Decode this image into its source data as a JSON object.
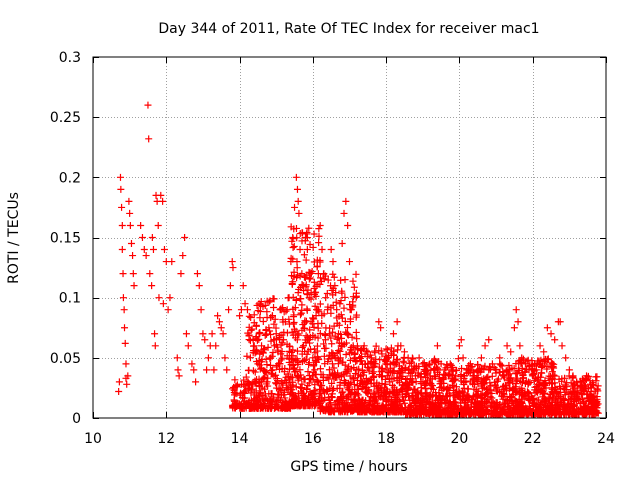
{
  "chart_data": {
    "type": "scatter",
    "title": "Day 344 of 2011, Rate Of TEC Index for receiver mac1",
    "xlabel": "GPS time / hours",
    "ylabel": "ROTI / TECUs",
    "xlim": [
      10,
      24
    ],
    "ylim": [
      0,
      0.3
    ],
    "xticks": [
      10,
      12,
      14,
      16,
      18,
      20,
      22,
      24
    ],
    "yticks": [
      0,
      0.05,
      0.1,
      0.15,
      0.2,
      0.25,
      0.3
    ],
    "ytick_labels": [
      "0",
      "0.05",
      "0.1",
      "0.15",
      "0.2",
      "0.25",
      "0.3"
    ],
    "grid": true,
    "marker": "+",
    "color": "#ff0000",
    "series": [
      {
        "name": "ROTI",
        "points": [
          [
            10.7,
            0.022
          ],
          [
            10.72,
            0.03
          ],
          [
            10.75,
            0.2
          ],
          [
            10.76,
            0.19
          ],
          [
            10.78,
            0.175
          ],
          [
            10.8,
            0.16
          ],
          [
            10.8,
            0.14
          ],
          [
            10.82,
            0.12
          ],
          [
            10.83,
            0.1
          ],
          [
            10.85,
            0.09
          ],
          [
            10.86,
            0.075
          ],
          [
            10.88,
            0.062
          ],
          [
            10.9,
            0.045
          ],
          [
            10.9,
            0.033
          ],
          [
            10.92,
            0.028
          ],
          [
            10.95,
            0.035
          ],
          [
            10.98,
            0.18
          ],
          [
            11.0,
            0.17
          ],
          [
            11.02,
            0.16
          ],
          [
            11.05,
            0.145
          ],
          [
            11.08,
            0.135
          ],
          [
            11.1,
            0.12
          ],
          [
            11.12,
            0.11
          ],
          [
            11.3,
            0.16
          ],
          [
            11.35,
            0.15
          ],
          [
            11.4,
            0.14
          ],
          [
            11.45,
            0.135
          ],
          [
            11.5,
            0.26
          ],
          [
            11.52,
            0.232
          ],
          [
            11.55,
            0.12
          ],
          [
            11.6,
            0.11
          ],
          [
            11.62,
            0.15
          ],
          [
            11.65,
            0.14
          ],
          [
            11.68,
            0.07
          ],
          [
            11.7,
            0.06
          ],
          [
            11.72,
            0.185
          ],
          [
            11.75,
            0.18
          ],
          [
            11.78,
            0.16
          ],
          [
            11.8,
            0.1
          ],
          [
            11.85,
            0.185
          ],
          [
            11.9,
            0.18
          ],
          [
            11.92,
            0.095
          ],
          [
            11.95,
            0.14
          ],
          [
            12.0,
            0.13
          ],
          [
            12.05,
            0.09
          ],
          [
            12.1,
            0.1
          ],
          [
            12.15,
            0.13
          ],
          [
            12.3,
            0.05
          ],
          [
            12.32,
            0.04
          ],
          [
            12.35,
            0.035
          ],
          [
            12.4,
            0.12
          ],
          [
            12.45,
            0.135
          ],
          [
            12.5,
            0.15
          ],
          [
            12.55,
            0.07
          ],
          [
            12.6,
            0.06
          ],
          [
            12.7,
            0.045
          ],
          [
            12.75,
            0.04
          ],
          [
            12.8,
            0.03
          ],
          [
            12.85,
            0.12
          ],
          [
            12.9,
            0.11
          ],
          [
            12.95,
            0.09
          ],
          [
            13.0,
            0.07
          ],
          [
            13.05,
            0.065
          ],
          [
            13.1,
            0.04
          ],
          [
            13.15,
            0.05
          ],
          [
            13.2,
            0.06
          ],
          [
            13.25,
            0.07
          ],
          [
            13.3,
            0.04
          ],
          [
            13.35,
            0.06
          ],
          [
            13.4,
            0.085
          ],
          [
            13.45,
            0.08
          ],
          [
            13.5,
            0.075
          ],
          [
            13.55,
            0.07
          ],
          [
            13.6,
            0.05
          ],
          [
            13.65,
            0.04
          ],
          [
            13.7,
            0.09
          ],
          [
            13.75,
            0.11
          ],
          [
            13.8,
            0.13
          ],
          [
            13.82,
            0.125
          ],
          [
            13.85,
            0.015
          ],
          [
            13.9,
            0.012
          ],
          [
            13.95,
            0.01
          ],
          [
            14.0,
            0.085
          ],
          [
            14.05,
            0.09
          ],
          [
            14.1,
            0.11
          ],
          [
            14.15,
            0.095
          ],
          [
            14.2,
            0.012
          ],
          [
            14.3,
            0.008
          ],
          [
            14.35,
            0.01
          ],
          [
            14.4,
            0.06
          ],
          [
            14.45,
            0.055
          ],
          [
            14.5,
            0.045
          ],
          [
            14.55,
            0.07
          ],
          [
            14.6,
            0.06
          ],
          [
            14.65,
            0.012
          ],
          [
            14.7,
            0.015
          ],
          [
            14.75,
            0.03
          ],
          [
            14.8,
            0.075
          ],
          [
            14.85,
            0.05
          ],
          [
            14.9,
            0.04
          ],
          [
            14.95,
            0.06
          ],
          [
            15.0,
            0.07
          ],
          [
            15.05,
            0.055
          ],
          [
            15.1,
            0.045
          ],
          [
            15.15,
            0.03
          ],
          [
            15.2,
            0.065
          ],
          [
            15.25,
            0.08
          ],
          [
            15.3,
            0.09
          ],
          [
            15.35,
            0.1
          ],
          [
            15.4,
            0.13
          ],
          [
            15.45,
            0.15
          ],
          [
            15.5,
            0.175
          ],
          [
            15.55,
            0.2
          ],
          [
            15.58,
            0.19
          ],
          [
            15.6,
            0.18
          ],
          [
            15.62,
            0.17
          ],
          [
            15.65,
            0.14
          ],
          [
            15.7,
            0.12
          ],
          [
            15.75,
            0.11
          ],
          [
            15.8,
            0.15
          ],
          [
            15.85,
            0.14
          ],
          [
            15.9,
            0.1
          ],
          [
            15.95,
            0.08
          ],
          [
            16.0,
            0.05
          ],
          [
            16.05,
            0.04
          ],
          [
            16.1,
            0.09
          ],
          [
            16.15,
            0.12
          ],
          [
            16.2,
            0.16
          ],
          [
            16.25,
            0.14
          ],
          [
            16.3,
            0.12
          ],
          [
            16.35,
            0.1
          ],
          [
            16.4,
            0.09
          ],
          [
            16.45,
            0.07
          ],
          [
            16.5,
            0.14
          ],
          [
            16.55,
            0.13
          ],
          [
            16.6,
            0.11
          ],
          [
            16.65,
            0.09
          ],
          [
            16.7,
            0.07
          ],
          [
            16.75,
            0.05
          ],
          [
            16.8,
            0.145
          ],
          [
            16.85,
            0.17
          ],
          [
            16.9,
            0.18
          ],
          [
            16.95,
            0.16
          ],
          [
            17.0,
            0.13
          ],
          [
            17.05,
            0.09
          ],
          [
            17.1,
            0.06
          ],
          [
            17.15,
            0.05
          ],
          [
            17.2,
            0.04
          ],
          [
            17.3,
            0.035
          ],
          [
            17.4,
            0.06
          ],
          [
            17.5,
            0.055
          ],
          [
            17.6,
            0.05
          ],
          [
            17.7,
            0.045
          ],
          [
            17.8,
            0.08
          ],
          [
            17.85,
            0.075
          ],
          [
            17.9,
            0.035
          ],
          [
            18.0,
            0.04
          ],
          [
            18.1,
            0.03
          ],
          [
            18.2,
            0.07
          ],
          [
            18.3,
            0.08
          ],
          [
            18.4,
            0.06
          ],
          [
            18.5,
            0.055
          ],
          [
            18.6,
            0.05
          ],
          [
            18.7,
            0.04
          ],
          [
            18.8,
            0.035
          ],
          [
            18.9,
            0.05
          ],
          [
            19.0,
            0.045
          ],
          [
            19.1,
            0.04
          ],
          [
            19.2,
            0.035
          ],
          [
            19.3,
            0.04
          ],
          [
            19.4,
            0.06
          ],
          [
            19.5,
            0.045
          ],
          [
            19.6,
            0.04
          ],
          [
            19.7,
            0.035
          ],
          [
            19.75,
            0.045
          ],
          [
            19.8,
            0.04
          ],
          [
            19.9,
            0.035
          ],
          [
            20.0,
            0.06
          ],
          [
            20.05,
            0.065
          ],
          [
            20.1,
            0.05
          ],
          [
            20.2,
            0.04
          ],
          [
            20.3,
            0.045
          ],
          [
            20.4,
            0.035
          ],
          [
            20.5,
            0.04
          ],
          [
            20.6,
            0.05
          ],
          [
            20.7,
            0.06
          ],
          [
            20.8,
            0.065
          ],
          [
            20.9,
            0.045
          ],
          [
            21.0,
            0.04
          ],
          [
            21.1,
            0.05
          ],
          [
            21.2,
            0.035
          ],
          [
            21.3,
            0.06
          ],
          [
            21.4,
            0.055
          ],
          [
            21.5,
            0.075
          ],
          [
            21.55,
            0.09
          ],
          [
            21.6,
            0.08
          ],
          [
            21.65,
            0.06
          ],
          [
            21.7,
            0.05
          ],
          [
            21.8,
            0.045
          ],
          [
            21.9,
            0.04
          ],
          [
            22.0,
            0.035
          ],
          [
            22.1,
            0.04
          ],
          [
            22.2,
            0.06
          ],
          [
            22.3,
            0.055
          ],
          [
            22.4,
            0.075
          ],
          [
            22.5,
            0.07
          ],
          [
            22.6,
            0.065
          ],
          [
            22.7,
            0.08
          ],
          [
            22.75,
            0.08
          ],
          [
            22.8,
            0.06
          ],
          [
            22.9,
            0.05
          ],
          [
            23.0,
            0.04
          ],
          [
            23.1,
            0.035
          ],
          [
            23.2,
            0.03
          ],
          [
            23.3,
            0.025
          ],
          [
            23.4,
            0.022
          ],
          [
            23.5,
            0.02
          ],
          [
            23.6,
            0.018
          ],
          [
            23.7,
            0.015
          ]
        ],
        "dense_bands": [
          {
            "x": [
              13.8,
              14.2
            ],
            "y": [
              0.008,
              0.035
            ],
            "count": 60
          },
          {
            "x": [
              14.2,
              15.4
            ],
            "y": [
              0.008,
              0.1
            ],
            "count": 350
          },
          {
            "x": [
              15.4,
              16.2
            ],
            "y": [
              0.01,
              0.16
            ],
            "count": 330
          },
          {
            "x": [
              16.2,
              17.2
            ],
            "y": [
              0.005,
              0.12
            ],
            "count": 320
          },
          {
            "x": [
              17.2,
              18.5
            ],
            "y": [
              0.005,
              0.06
            ],
            "count": 420
          },
          {
            "x": [
              18.5,
              20.0
            ],
            "y": [
              0.003,
              0.05
            ],
            "count": 460
          },
          {
            "x": [
              20.0,
              21.5
            ],
            "y": [
              0.003,
              0.045
            ],
            "count": 420
          },
          {
            "x": [
              21.5,
              22.6
            ],
            "y": [
              0.003,
              0.05
            ],
            "count": 360
          },
          {
            "x": [
              22.6,
              23.8
            ],
            "y": [
              0.003,
              0.035
            ],
            "count": 320
          }
        ]
      }
    ]
  }
}
